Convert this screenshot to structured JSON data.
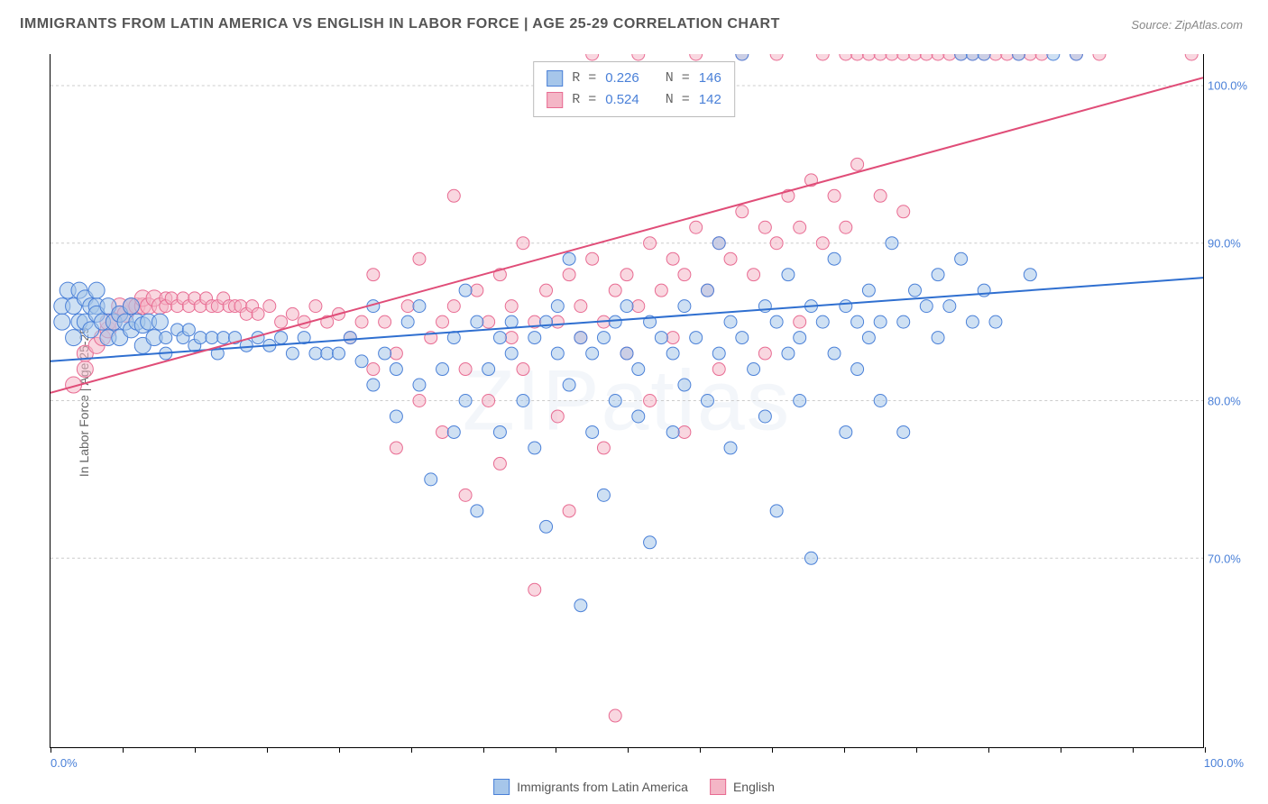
{
  "title": "IMMIGRANTS FROM LATIN AMERICA VS ENGLISH IN LABOR FORCE | AGE 25-29 CORRELATION CHART",
  "source_label": "Source:",
  "source_value": "ZipAtlas.com",
  "ylabel": "In Labor Force | Age 25-29",
  "watermark": "ZIPatlas",
  "chart": {
    "type": "scatter",
    "xlim": [
      0,
      100
    ],
    "ylim": [
      58,
      102
    ],
    "ytick_values": [
      70,
      80,
      90,
      100
    ],
    "ytick_labels": [
      "70.0%",
      "80.0%",
      "90.0%",
      "100.0%"
    ],
    "xtick_left": "0.0%",
    "xtick_right": "100.0%",
    "xtick_marks": [
      0,
      6.25,
      12.5,
      18.75,
      25,
      31.25,
      37.5,
      43.75,
      50,
      56.25,
      62.5,
      68.75,
      75,
      81.25,
      87.5,
      93.75,
      100
    ],
    "grid_color": "#cccccc",
    "background_color": "#ffffff",
    "axis_color": "#000000",
    "series": [
      {
        "name": "Immigrants from Latin America",
        "fill": "#a6c6ea",
        "stroke": "#4a80d8",
        "fill_opacity": 0.55,
        "marker_radius": 7,
        "line_color": "#2f6fd0",
        "line_width": 2,
        "regression": {
          "x1": 0,
          "y1": 82.5,
          "x2": 100,
          "y2": 87.8
        },
        "R": 0.226,
        "N": 146,
        "points": [
          [
            1,
            86
          ],
          [
            1,
            85
          ],
          [
            1.5,
            87
          ],
          [
            2,
            86
          ],
          [
            2,
            84
          ],
          [
            2.5,
            85
          ],
          [
            2.5,
            87
          ],
          [
            3,
            86.5
          ],
          [
            3,
            85
          ],
          [
            3.5,
            86
          ],
          [
            3.5,
            84.5
          ],
          [
            4,
            86
          ],
          [
            4,
            85.5
          ],
          [
            4,
            87
          ],
          [
            4.5,
            85
          ],
          [
            5,
            86
          ],
          [
            5,
            84
          ],
          [
            5.5,
            85
          ],
          [
            6,
            85.5
          ],
          [
            6,
            84
          ],
          [
            6.5,
            85
          ],
          [
            7,
            84.5
          ],
          [
            7,
            86
          ],
          [
            7.5,
            85
          ],
          [
            8,
            84.8
          ],
          [
            8,
            83.5
          ],
          [
            8.5,
            85
          ],
          [
            9,
            84
          ],
          [
            9.5,
            85
          ],
          [
            10,
            84
          ],
          [
            10,
            83
          ],
          [
            11,
            84.5
          ],
          [
            11.5,
            84
          ],
          [
            12,
            84.5
          ],
          [
            12.5,
            83.5
          ],
          [
            13,
            84
          ],
          [
            14,
            84
          ],
          [
            14.5,
            83
          ],
          [
            15,
            84
          ],
          [
            16,
            84
          ],
          [
            17,
            83.5
          ],
          [
            18,
            84
          ],
          [
            19,
            83.5
          ],
          [
            20,
            84
          ],
          [
            21,
            83
          ],
          [
            22,
            84
          ],
          [
            23,
            83
          ],
          [
            24,
            83
          ],
          [
            25,
            83
          ],
          [
            26,
            84
          ],
          [
            27,
            82.5
          ],
          [
            28,
            81
          ],
          [
            28,
            86
          ],
          [
            29,
            83
          ],
          [
            30,
            82
          ],
          [
            30,
            79
          ],
          [
            31,
            85
          ],
          [
            32,
            81
          ],
          [
            32,
            86
          ],
          [
            33,
            75
          ],
          [
            34,
            82
          ],
          [
            35,
            84
          ],
          [
            35,
            78
          ],
          [
            36,
            80
          ],
          [
            36,
            87
          ],
          [
            37,
            85
          ],
          [
            37,
            73
          ],
          [
            38,
            82
          ],
          [
            39,
            84
          ],
          [
            39,
            78
          ],
          [
            40,
            83
          ],
          [
            40,
            85
          ],
          [
            41,
            80
          ],
          [
            42,
            84
          ],
          [
            42,
            77
          ],
          [
            43,
            85
          ],
          [
            43,
            72
          ],
          [
            44,
            83
          ],
          [
            44,
            86
          ],
          [
            45,
            81
          ],
          [
            45,
            89
          ],
          [
            46,
            84
          ],
          [
            46,
            67
          ],
          [
            47,
            83
          ],
          [
            47,
            78
          ],
          [
            48,
            84
          ],
          [
            48,
            74
          ],
          [
            49,
            85
          ],
          [
            49,
            80
          ],
          [
            50,
            83
          ],
          [
            50,
            86
          ],
          [
            51,
            79
          ],
          [
            51,
            82
          ],
          [
            52,
            85
          ],
          [
            52,
            71
          ],
          [
            53,
            84
          ],
          [
            54,
            83
          ],
          [
            54,
            78
          ],
          [
            55,
            86
          ],
          [
            55,
            81
          ],
          [
            56,
            84
          ],
          [
            57,
            80
          ],
          [
            57,
            87
          ],
          [
            58,
            83
          ],
          [
            58,
            90
          ],
          [
            59,
            85
          ],
          [
            59,
            77
          ],
          [
            60,
            84
          ],
          [
            60,
            102
          ],
          [
            61,
            82
          ],
          [
            62,
            86
          ],
          [
            62,
            79
          ],
          [
            63,
            85
          ],
          [
            63,
            73
          ],
          [
            64,
            88
          ],
          [
            64,
            83
          ],
          [
            65,
            84
          ],
          [
            65,
            80
          ],
          [
            66,
            86
          ],
          [
            66,
            70
          ],
          [
            67,
            85
          ],
          [
            68,
            83
          ],
          [
            68,
            89
          ],
          [
            69,
            86
          ],
          [
            69,
            78
          ],
          [
            70,
            85
          ],
          [
            70,
            82
          ],
          [
            71,
            87
          ],
          [
            71,
            84
          ],
          [
            72,
            85
          ],
          [
            72,
            80
          ],
          [
            73,
            90
          ],
          [
            74,
            85
          ],
          [
            74,
            78
          ],
          [
            75,
            87
          ],
          [
            76,
            86
          ],
          [
            77,
            88
          ],
          [
            77,
            84
          ],
          [
            78,
            86
          ],
          [
            79,
            89
          ],
          [
            79,
            102
          ],
          [
            80,
            85
          ],
          [
            80,
            102
          ],
          [
            81,
            87
          ],
          [
            81,
            102
          ],
          [
            82,
            85
          ],
          [
            84,
            102
          ],
          [
            85,
            88
          ],
          [
            87,
            102
          ],
          [
            89,
            102
          ]
        ]
      },
      {
        "name": "English",
        "fill": "#f4b6c6",
        "stroke": "#e86b92",
        "fill_opacity": 0.55,
        "marker_radius": 7,
        "line_color": "#e04d78",
        "line_width": 2,
        "regression": {
          "x1": 0,
          "y1": 80.5,
          "x2": 100,
          "y2": 100.5
        },
        "R": 0.524,
        "N": 142,
        "points": [
          [
            2,
            81
          ],
          [
            3,
            82
          ],
          [
            3,
            83
          ],
          [
            4,
            83.5
          ],
          [
            4.5,
            84
          ],
          [
            5,
            84.5
          ],
          [
            5,
            85
          ],
          [
            5.5,
            85
          ],
          [
            6,
            85.5
          ],
          [
            6,
            86
          ],
          [
            6.5,
            85.5
          ],
          [
            7,
            86
          ],
          [
            7,
            86
          ],
          [
            7.5,
            86
          ],
          [
            8,
            86
          ],
          [
            8,
            86.5
          ],
          [
            8.5,
            86
          ],
          [
            9,
            86.5
          ],
          [
            9.5,
            86
          ],
          [
            10,
            86.5
          ],
          [
            10,
            86
          ],
          [
            10.5,
            86.5
          ],
          [
            11,
            86
          ],
          [
            11.5,
            86.5
          ],
          [
            12,
            86
          ],
          [
            12.5,
            86.5
          ],
          [
            13,
            86
          ],
          [
            13.5,
            86.5
          ],
          [
            14,
            86
          ],
          [
            14.5,
            86
          ],
          [
            15,
            86.5
          ],
          [
            15.5,
            86
          ],
          [
            16,
            86
          ],
          [
            16.5,
            86
          ],
          [
            17,
            85.5
          ],
          [
            17.5,
            86
          ],
          [
            18,
            85.5
          ],
          [
            19,
            86
          ],
          [
            20,
            85
          ],
          [
            21,
            85.5
          ],
          [
            22,
            85
          ],
          [
            23,
            86
          ],
          [
            24,
            85
          ],
          [
            25,
            85.5
          ],
          [
            26,
            84
          ],
          [
            27,
            85
          ],
          [
            28,
            82
          ],
          [
            28,
            88
          ],
          [
            29,
            85
          ],
          [
            30,
            83
          ],
          [
            30,
            77
          ],
          [
            31,
            86
          ],
          [
            32,
            80
          ],
          [
            32,
            89
          ],
          [
            33,
            84
          ],
          [
            34,
            85
          ],
          [
            34,
            78
          ],
          [
            35,
            86
          ],
          [
            35,
            93
          ],
          [
            36,
            82
          ],
          [
            36,
            74
          ],
          [
            37,
            87
          ],
          [
            38,
            85
          ],
          [
            38,
            80
          ],
          [
            39,
            88
          ],
          [
            39,
            76
          ],
          [
            40,
            86
          ],
          [
            40,
            84
          ],
          [
            41,
            82
          ],
          [
            41,
            90
          ],
          [
            42,
            85
          ],
          [
            42,
            68
          ],
          [
            43,
            87
          ],
          [
            44,
            85
          ],
          [
            44,
            79
          ],
          [
            45,
            88
          ],
          [
            45,
            73
          ],
          [
            46,
            86
          ],
          [
            46,
            84
          ],
          [
            47,
            89
          ],
          [
            47,
            102
          ],
          [
            48,
            85
          ],
          [
            48,
            77
          ],
          [
            49,
            87
          ],
          [
            49,
            60
          ],
          [
            50,
            88
          ],
          [
            50,
            83
          ],
          [
            51,
            86
          ],
          [
            51,
            102
          ],
          [
            52,
            90
          ],
          [
            52,
            80
          ],
          [
            53,
            87
          ],
          [
            54,
            89
          ],
          [
            54,
            84
          ],
          [
            55,
            88
          ],
          [
            55,
            78
          ],
          [
            56,
            91
          ],
          [
            56,
            102
          ],
          [
            57,
            87
          ],
          [
            58,
            90
          ],
          [
            58,
            82
          ],
          [
            59,
            89
          ],
          [
            60,
            92
          ],
          [
            60,
            102
          ],
          [
            61,
            88
          ],
          [
            62,
            91
          ],
          [
            62,
            83
          ],
          [
            63,
            90
          ],
          [
            63,
            102
          ],
          [
            64,
            93
          ],
          [
            65,
            91
          ],
          [
            65,
            85
          ],
          [
            66,
            94
          ],
          [
            67,
            90
          ],
          [
            67,
            102
          ],
          [
            68,
            93
          ],
          [
            69,
            91
          ],
          [
            69,
            102
          ],
          [
            70,
            95
          ],
          [
            70,
            102
          ],
          [
            71,
            102
          ],
          [
            72,
            93
          ],
          [
            72,
            102
          ],
          [
            73,
            102
          ],
          [
            74,
            92
          ],
          [
            74,
            102
          ],
          [
            75,
            102
          ],
          [
            76,
            102
          ],
          [
            77,
            102
          ],
          [
            78,
            102
          ],
          [
            79,
            102
          ],
          [
            80,
            102
          ],
          [
            81,
            102
          ],
          [
            82,
            102
          ],
          [
            83,
            102
          ],
          [
            84,
            102
          ],
          [
            85,
            102
          ],
          [
            86,
            102
          ],
          [
            89,
            102
          ],
          [
            91,
            102
          ],
          [
            99,
            102
          ]
        ]
      }
    ]
  },
  "legend_top": {
    "r_label": "R =",
    "n_label": "N ="
  },
  "legend_bottom_labels": [
    "Immigrants from Latin America",
    "English"
  ]
}
